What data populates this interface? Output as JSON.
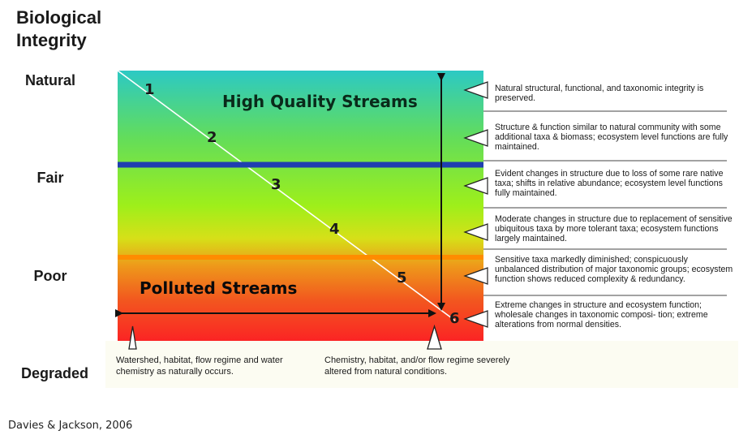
{
  "axis": {
    "title_line1": "Biological",
    "title_line2": "Integrity",
    "levels": [
      "Natural",
      "Fair",
      "Poor",
      "Degraded"
    ]
  },
  "zones": {
    "high_quality": "High Quality Streams",
    "polluted": "Polluted Streams"
  },
  "tiers": [
    "1",
    "2",
    "3",
    "4",
    "5",
    "6"
  ],
  "descriptions": [
    "Natural structural, functional, and taxonomic integrity is preserved.",
    "Structure & function similar to natural community with some additional taxa & biomass; ecosystem level functions are fully maintained.",
    "Evident changes in structure due to loss of some rare native taxa; shifts in relative abundance; ecosystem level functions fully maintained.",
    "Moderate changes in structure due to replacement of sensitive ubiquitous taxa by more tolerant taxa; ecosystem functions largely maintained.",
    "Sensitive taxa markedly diminished; conspicuously unbalanced distribution of major taxonomic groups; ecosystem function shows reduced complexity & redundancy.",
    "Extreme changes in structure and ecosystem function; wholesale changes in taxonomic composi- tion; extreme alterations from normal densities."
  ],
  "notes": {
    "left": "Watershed, habitat, flow regime and water chemistry as naturally occurs.",
    "right": "Chemistry, habitat, and/or flow regime severely altered from natural conditions."
  },
  "citation": "Davies & Jackson, 2006",
  "colors": {
    "blue_line": "#1f3fb0",
    "orange_line": "#ff8c00",
    "high_quality_text": "#0a2a1a",
    "polluted_text": "#0a0a0a"
  }
}
